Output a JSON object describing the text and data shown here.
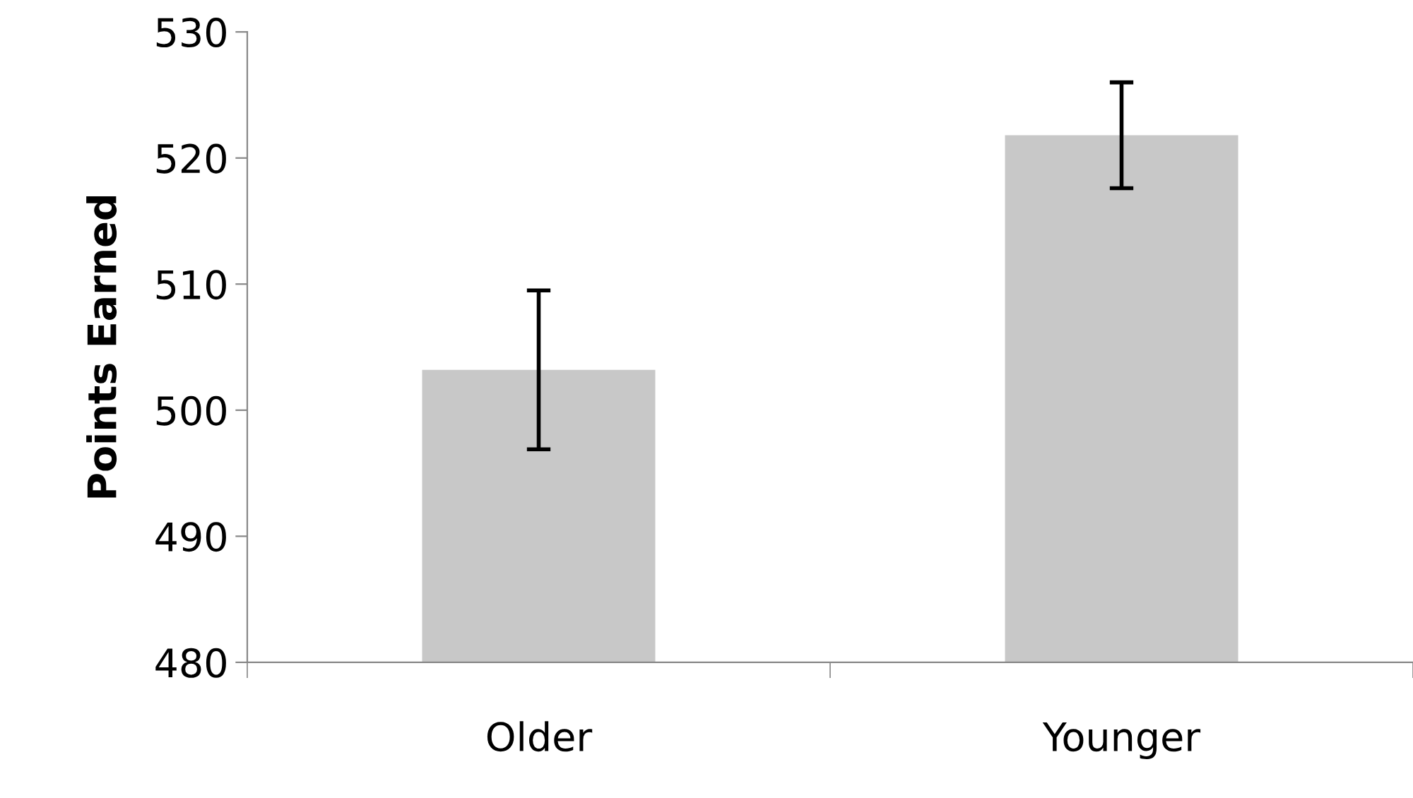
{
  "chart_data": {
    "type": "bar",
    "ylabel": "Points Earned",
    "categories": [
      "Older",
      "Younger"
    ],
    "values": [
      503.2,
      521.8
    ],
    "errors": [
      6.3,
      4.2
    ],
    "color": "#c8c8c8",
    "ylim": [
      480,
      530
    ],
    "yticks": [
      480,
      490,
      500,
      510,
      520,
      530
    ],
    "grid": false,
    "legend": false
  }
}
